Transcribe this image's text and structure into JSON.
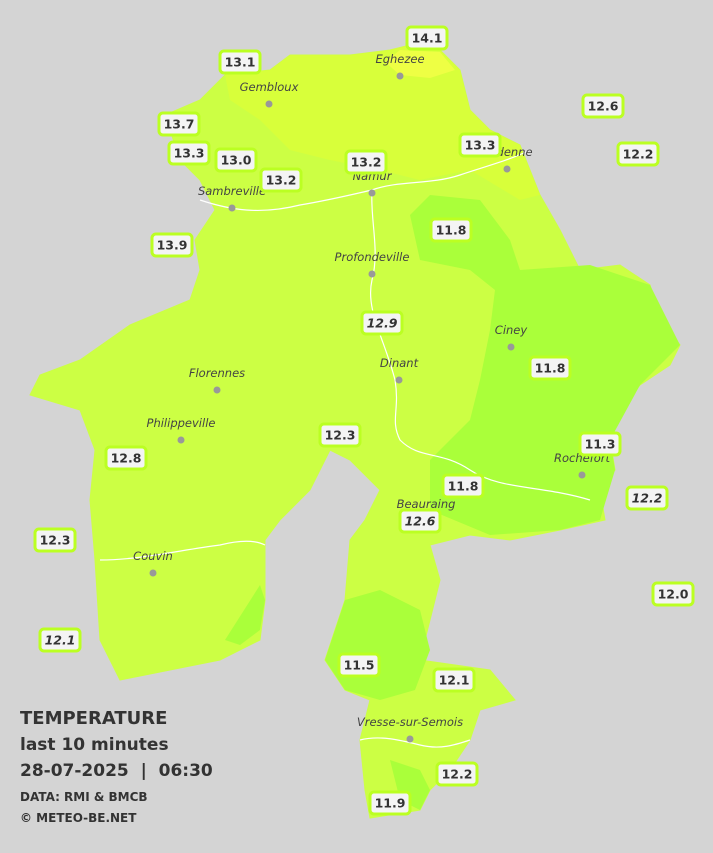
{
  "header": {
    "title": "TEMPERATURE",
    "subtitle": "last 10 minutes",
    "datetime": "28-07-2025  |  06:30",
    "source": "DATA: RMI & BMCB",
    "credit": "© METEO-BE.NET"
  },
  "towns": [
    "Eghezee",
    "Gembloux",
    "Andenne",
    "Namur",
    "Sambreville",
    "Profondeville",
    "Ciney",
    "Dinant",
    "Florennes",
    "Philippeville",
    "Rochefort",
    "Beauraing",
    "Couvin",
    "Vresse-sur-Semois"
  ],
  "readings": [
    {
      "label": "13.1"
    },
    {
      "label": "14.1"
    },
    {
      "label": "13.7"
    },
    {
      "label": "13.3"
    },
    {
      "label": "13.0"
    },
    {
      "label": "13.2"
    },
    {
      "label": "13.2"
    },
    {
      "label": "13.3"
    },
    {
      "label": "12.6"
    },
    {
      "label": "12.2"
    },
    {
      "label": "13.9"
    },
    {
      "label": "11.8"
    },
    {
      "label": "12.9",
      "italic": true
    },
    {
      "label": "11.8"
    },
    {
      "label": "12.3"
    },
    {
      "label": "12.8"
    },
    {
      "label": "11.3"
    },
    {
      "label": "11.8"
    },
    {
      "label": "12.2",
      "italic": true
    },
    {
      "label": "12.6",
      "italic": true
    },
    {
      "label": "12.3"
    },
    {
      "label": "12.0"
    },
    {
      "label": "12.1",
      "italic": true
    },
    {
      "label": "11.5"
    },
    {
      "label": "12.1"
    },
    {
      "label": "12.2"
    },
    {
      "label": "11.9"
    }
  ]
}
